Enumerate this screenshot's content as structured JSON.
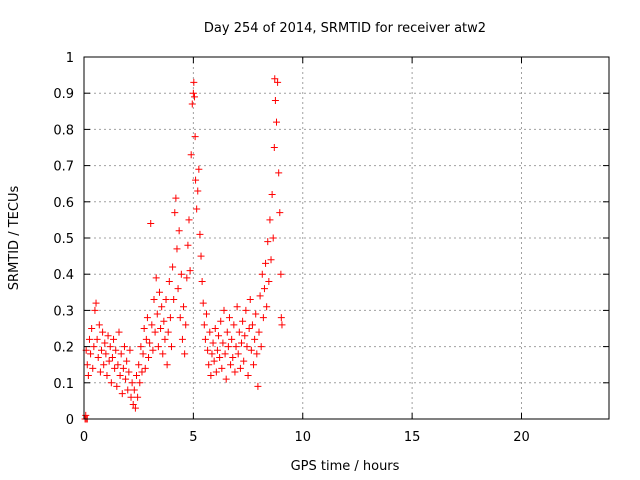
{
  "chart_data": {
    "type": "scatter",
    "title": "Day 254 of 2014, SRMTID for receiver atw2",
    "xlabel": "GPS time / hours",
    "ylabel": "SRMTID / TECUs",
    "xlim": [
      0,
      24
    ],
    "ylim": [
      0,
      1
    ],
    "grid": true,
    "marker": "plus",
    "color": "#ff0000",
    "x_ticks": [
      0,
      5,
      10,
      15,
      20
    ],
    "x_tick_labels": [
      "0",
      "5",
      "10",
      "15",
      "20"
    ],
    "y_ticks": [
      0,
      0.1,
      0.2,
      0.3,
      0.4,
      0.5,
      0.6,
      0.7,
      0.8,
      0.9,
      1
    ],
    "y_tick_labels": [
      "0",
      "0.1",
      "0.2",
      "0.3",
      "0.4",
      "0.5",
      "0.6",
      "0.7",
      "0.8",
      "0.9",
      "1"
    ],
    "series": [
      {
        "name": "atw2",
        "points": [
          [
            0.05,
            0.0
          ],
          [
            0.1,
            0.0
          ],
          [
            0.15,
            0.0
          ],
          [
            0.08,
            0.01
          ],
          [
            0.1,
            0.19
          ],
          [
            0.15,
            0.15
          ],
          [
            0.2,
            0.12
          ],
          [
            0.25,
            0.22
          ],
          [
            0.3,
            0.18
          ],
          [
            0.35,
            0.25
          ],
          [
            0.4,
            0.14
          ],
          [
            0.45,
            0.2
          ],
          [
            0.5,
            0.3
          ],
          [
            0.55,
            0.32
          ],
          [
            0.6,
            0.22
          ],
          [
            0.65,
            0.17
          ],
          [
            0.7,
            0.26
          ],
          [
            0.75,
            0.13
          ],
          [
            0.8,
            0.19
          ],
          [
            0.85,
            0.24
          ],
          [
            0.9,
            0.15
          ],
          [
            0.95,
            0.21
          ],
          [
            1.0,
            0.18
          ],
          [
            1.05,
            0.12
          ],
          [
            1.1,
            0.23
          ],
          [
            1.15,
            0.16
          ],
          [
            1.2,
            0.2
          ],
          [
            1.25,
            0.1
          ],
          [
            1.3,
            0.17
          ],
          [
            1.35,
            0.22
          ],
          [
            1.4,
            0.14
          ],
          [
            1.45,
            0.19
          ],
          [
            1.5,
            0.09
          ],
          [
            1.55,
            0.15
          ],
          [
            1.6,
            0.24
          ],
          [
            1.65,
            0.12
          ],
          [
            1.7,
            0.18
          ],
          [
            1.75,
            0.07
          ],
          [
            1.8,
            0.14
          ],
          [
            1.85,
            0.2
          ],
          [
            1.9,
            0.11
          ],
          [
            1.95,
            0.16
          ],
          [
            2.0,
            0.08
          ],
          [
            2.05,
            0.13
          ],
          [
            2.1,
            0.19
          ],
          [
            2.15,
            0.06
          ],
          [
            2.2,
            0.1
          ],
          [
            2.25,
            0.04
          ],
          [
            2.3,
            0.08
          ],
          [
            2.35,
            0.03
          ],
          [
            2.4,
            0.12
          ],
          [
            2.45,
            0.06
          ],
          [
            2.5,
            0.15
          ],
          [
            2.55,
            0.1
          ],
          [
            2.6,
            0.2
          ],
          [
            2.65,
            0.13
          ],
          [
            2.7,
            0.18
          ],
          [
            2.75,
            0.25
          ],
          [
            2.8,
            0.14
          ],
          [
            2.85,
            0.22
          ],
          [
            2.9,
            0.28
          ],
          [
            2.95,
            0.17
          ],
          [
            3.0,
            0.21
          ],
          [
            3.05,
            0.54
          ],
          [
            3.1,
            0.26
          ],
          [
            3.15,
            0.19
          ],
          [
            3.2,
            0.33
          ],
          [
            3.25,
            0.24
          ],
          [
            3.3,
            0.39
          ],
          [
            3.35,
            0.29
          ],
          [
            3.4,
            0.2
          ],
          [
            3.45,
            0.35
          ],
          [
            3.5,
            0.25
          ],
          [
            3.55,
            0.31
          ],
          [
            3.6,
            0.18
          ],
          [
            3.65,
            0.27
          ],
          [
            3.7,
            0.22
          ],
          [
            3.75,
            0.33
          ],
          [
            3.8,
            0.15
          ],
          [
            3.85,
            0.24
          ],
          [
            3.9,
            0.38
          ],
          [
            3.95,
            0.28
          ],
          [
            4.0,
            0.2
          ],
          [
            4.05,
            0.42
          ],
          [
            4.1,
            0.33
          ],
          [
            4.15,
            0.57
          ],
          [
            4.2,
            0.61
          ],
          [
            4.25,
            0.47
          ],
          [
            4.3,
            0.36
          ],
          [
            4.35,
            0.52
          ],
          [
            4.4,
            0.28
          ],
          [
            4.45,
            0.4
          ],
          [
            4.5,
            0.22
          ],
          [
            4.55,
            0.31
          ],
          [
            4.6,
            0.18
          ],
          [
            4.65,
            0.26
          ],
          [
            4.7,
            0.39
          ],
          [
            4.75,
            0.48
          ],
          [
            4.8,
            0.55
          ],
          [
            4.85,
            0.41
          ],
          [
            4.9,
            0.73
          ],
          [
            4.95,
            0.87
          ],
          [
            5.0,
            0.9
          ],
          [
            5.02,
            0.93
          ],
          [
            5.05,
            0.89
          ],
          [
            5.08,
            0.78
          ],
          [
            5.1,
            0.66
          ],
          [
            5.15,
            0.58
          ],
          [
            5.2,
            0.63
          ],
          [
            5.25,
            0.69
          ],
          [
            5.3,
            0.51
          ],
          [
            5.35,
            0.45
          ],
          [
            5.4,
            0.38
          ],
          [
            5.45,
            0.32
          ],
          [
            5.5,
            0.26
          ],
          [
            5.55,
            0.22
          ],
          [
            5.6,
            0.29
          ],
          [
            5.65,
            0.19
          ],
          [
            5.7,
            0.15
          ],
          [
            5.75,
            0.24
          ],
          [
            5.8,
            0.12
          ],
          [
            5.85,
            0.18
          ],
          [
            5.9,
            0.21
          ],
          [
            5.95,
            0.16
          ],
          [
            6.0,
            0.25
          ],
          [
            6.05,
            0.13
          ],
          [
            6.1,
            0.19
          ],
          [
            6.15,
            0.23
          ],
          [
            6.2,
            0.17
          ],
          [
            6.25,
            0.27
          ],
          [
            6.3,
            0.14
          ],
          [
            6.35,
            0.21
          ],
          [
            6.4,
            0.3
          ],
          [
            6.45,
            0.18
          ],
          [
            6.5,
            0.11
          ],
          [
            6.55,
            0.24
          ],
          [
            6.6,
            0.2
          ],
          [
            6.65,
            0.28
          ],
          [
            6.7,
            0.15
          ],
          [
            6.75,
            0.22
          ],
          [
            6.8,
            0.17
          ],
          [
            6.85,
            0.26
          ],
          [
            6.9,
            0.13
          ],
          [
            6.95,
            0.2
          ],
          [
            7.0,
            0.31
          ],
          [
            7.05,
            0.18
          ],
          [
            7.1,
            0.24
          ],
          [
            7.15,
            0.14
          ],
          [
            7.2,
            0.21
          ],
          [
            7.25,
            0.27
          ],
          [
            7.3,
            0.16
          ],
          [
            7.35,
            0.23
          ],
          [
            7.4,
            0.3
          ],
          [
            7.45,
            0.2
          ],
          [
            7.5,
            0.12
          ],
          [
            7.55,
            0.25
          ],
          [
            7.6,
            0.33
          ],
          [
            7.65,
            0.19
          ],
          [
            7.7,
            0.26
          ],
          [
            7.75,
            0.15
          ],
          [
            7.8,
            0.22
          ],
          [
            7.85,
            0.29
          ],
          [
            7.9,
            0.18
          ],
          [
            7.95,
            0.09
          ],
          [
            8.0,
            0.24
          ],
          [
            8.05,
            0.34
          ],
          [
            8.1,
            0.2
          ],
          [
            8.15,
            0.4
          ],
          [
            8.2,
            0.28
          ],
          [
            8.25,
            0.36
          ],
          [
            8.3,
            0.43
          ],
          [
            8.35,
            0.31
          ],
          [
            8.4,
            0.49
          ],
          [
            8.45,
            0.38
          ],
          [
            8.5,
            0.55
          ],
          [
            8.55,
            0.44
          ],
          [
            8.6,
            0.62
          ],
          [
            8.65,
            0.5
          ],
          [
            8.7,
            0.75
          ],
          [
            8.72,
            0.94
          ],
          [
            8.75,
            0.88
          ],
          [
            8.8,
            0.82
          ],
          [
            8.85,
            0.93
          ],
          [
            8.9,
            0.68
          ],
          [
            8.95,
            0.57
          ],
          [
            9.0,
            0.4
          ],
          [
            9.02,
            0.28
          ],
          [
            9.05,
            0.26
          ]
        ]
      }
    ]
  }
}
